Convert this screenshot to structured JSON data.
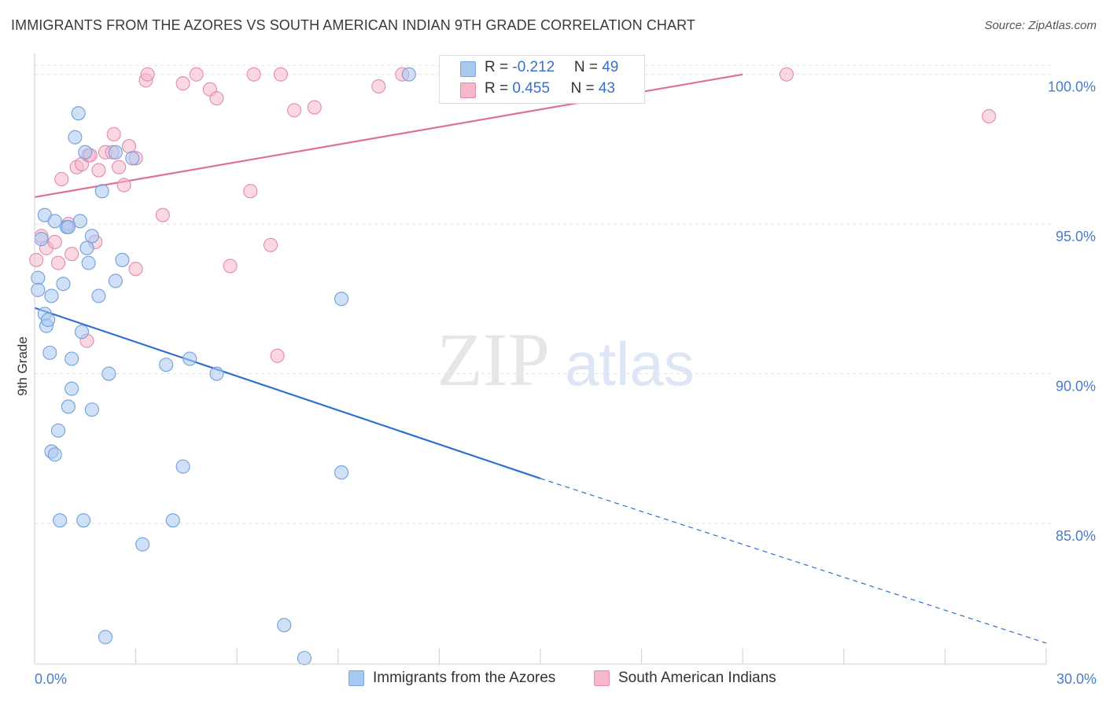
{
  "title": "IMMIGRANTS FROM THE AZORES VS SOUTH AMERICAN INDIAN 9TH GRADE CORRELATION CHART",
  "source": "Source: ZipAtlas.com",
  "watermark": {
    "zip": "ZIP",
    "atlas": "atlas"
  },
  "legend": {
    "rows": [
      {
        "r_label": "R = ",
        "r_value": "-0.212",
        "n_label": "N = ",
        "n_value": "49",
        "color": "#a9c8f0"
      },
      {
        "r_label": "R = ",
        "r_value": "0.455",
        "n_label": "N = ",
        "n_value": "43",
        "color": "#f5b8cb"
      }
    ]
  },
  "chart_data": {
    "type": "scatter",
    "xlabel": "",
    "ylabel": "9th Grade",
    "xlim": [
      0,
      30
    ],
    "ylim": [
      80.3,
      100.7
    ],
    "x_tick_labels": [
      {
        "value": 0,
        "label": "0.0%"
      },
      {
        "value": 30,
        "label": "30.0%"
      }
    ],
    "y_tick_labels": [
      {
        "value": 85,
        "label": "85.0%"
      },
      {
        "value": 90,
        "label": "90.0%"
      },
      {
        "value": 95,
        "label": "95.0%"
      },
      {
        "value": 100,
        "label": "100.0%"
      }
    ],
    "x_minor_ticks": [
      0,
      3,
      6,
      9,
      12,
      15,
      18,
      21,
      24,
      27,
      30
    ],
    "grid": true,
    "legend_position": "top-center",
    "series": [
      {
        "name": "Immigrants from the Azores",
        "color": "#a9c8f0",
        "stroke": "#6f9fdc",
        "trend": {
          "x_start": 0,
          "y_start": 92.2,
          "x_solid_end": 15,
          "y_solid_end": 86.5,
          "x_end": 30,
          "y_end": 81.0,
          "color": "#2f6fcf"
        },
        "points": [
          [
            0.1,
            93.2
          ],
          [
            0.1,
            92.8
          ],
          [
            0.2,
            94.5
          ],
          [
            0.3,
            95.3
          ],
          [
            0.3,
            92.0
          ],
          [
            0.35,
            91.6
          ],
          [
            0.4,
            91.8
          ],
          [
            0.45,
            90.7
          ],
          [
            0.5,
            92.6
          ],
          [
            0.5,
            87.4
          ],
          [
            0.6,
            95.1
          ],
          [
            0.6,
            87.3
          ],
          [
            0.7,
            88.1
          ],
          [
            0.75,
            85.1
          ],
          [
            0.85,
            93.0
          ],
          [
            0.95,
            94.9
          ],
          [
            1.0,
            94.9
          ],
          [
            1.0,
            88.9
          ],
          [
            1.1,
            90.5
          ],
          [
            1.1,
            89.5
          ],
          [
            1.2,
            97.9
          ],
          [
            1.3,
            98.7
          ],
          [
            1.35,
            95.1
          ],
          [
            1.4,
            91.4
          ],
          [
            1.45,
            85.1
          ],
          [
            1.5,
            97.4
          ],
          [
            1.55,
            94.2
          ],
          [
            1.6,
            93.7
          ],
          [
            1.7,
            94.6
          ],
          [
            1.7,
            88.8
          ],
          [
            1.9,
            92.6
          ],
          [
            2.0,
            96.1
          ],
          [
            2.1,
            81.2
          ],
          [
            2.2,
            90.0
          ],
          [
            2.4,
            93.1
          ],
          [
            2.4,
            97.4
          ],
          [
            2.6,
            93.8
          ],
          [
            2.9,
            97.2
          ],
          [
            3.2,
            84.3
          ],
          [
            3.9,
            90.3
          ],
          [
            4.1,
            85.1
          ],
          [
            4.4,
            86.9
          ],
          [
            4.6,
            90.5
          ],
          [
            5.4,
            90.0
          ],
          [
            7.4,
            81.6
          ],
          [
            8.0,
            80.5
          ],
          [
            9.1,
            92.5
          ],
          [
            9.1,
            86.7
          ],
          [
            11.1,
            100.0
          ]
        ]
      },
      {
        "name": "South American Indians",
        "color": "#f5b8cb",
        "stroke": "#e48aa7",
        "trend": {
          "x_start": 0,
          "y_start": 95.9,
          "x_end": 21,
          "y_end": 100.0,
          "color": "#e0708f"
        },
        "points": [
          [
            0.05,
            93.8
          ],
          [
            0.2,
            94.6
          ],
          [
            0.35,
            94.2
          ],
          [
            0.6,
            94.4
          ],
          [
            0.7,
            93.7
          ],
          [
            0.8,
            96.5
          ],
          [
            1.0,
            95.0
          ],
          [
            1.1,
            94.0
          ],
          [
            1.25,
            96.9
          ],
          [
            1.4,
            97.0
          ],
          [
            1.6,
            97.3
          ],
          [
            1.8,
            94.4
          ],
          [
            1.9,
            96.8
          ],
          [
            1.55,
            91.1
          ],
          [
            2.1,
            97.4
          ],
          [
            2.3,
            97.4
          ],
          [
            2.35,
            98.0
          ],
          [
            2.5,
            96.9
          ],
          [
            2.65,
            96.3
          ],
          [
            2.8,
            97.6
          ],
          [
            3.0,
            93.5
          ],
          [
            3.0,
            97.2
          ],
          [
            3.3,
            99.8
          ],
          [
            3.35,
            100.0
          ],
          [
            3.8,
            95.3
          ],
          [
            4.4,
            99.7
          ],
          [
            4.8,
            100.0
          ],
          [
            5.2,
            99.5
          ],
          [
            5.4,
            99.2
          ],
          [
            5.8,
            93.6
          ],
          [
            6.4,
            96.1
          ],
          [
            6.5,
            100.0
          ],
          [
            7.0,
            94.3
          ],
          [
            7.2,
            90.6
          ],
          [
            7.3,
            100.0
          ],
          [
            7.7,
            98.8
          ],
          [
            8.3,
            98.9
          ],
          [
            10.2,
            99.6
          ],
          [
            10.9,
            100.0
          ],
          [
            14.5,
            100.0
          ],
          [
            22.3,
            100.0
          ],
          [
            28.3,
            98.6
          ],
          [
            1.65,
            97.3
          ]
        ]
      }
    ]
  }
}
